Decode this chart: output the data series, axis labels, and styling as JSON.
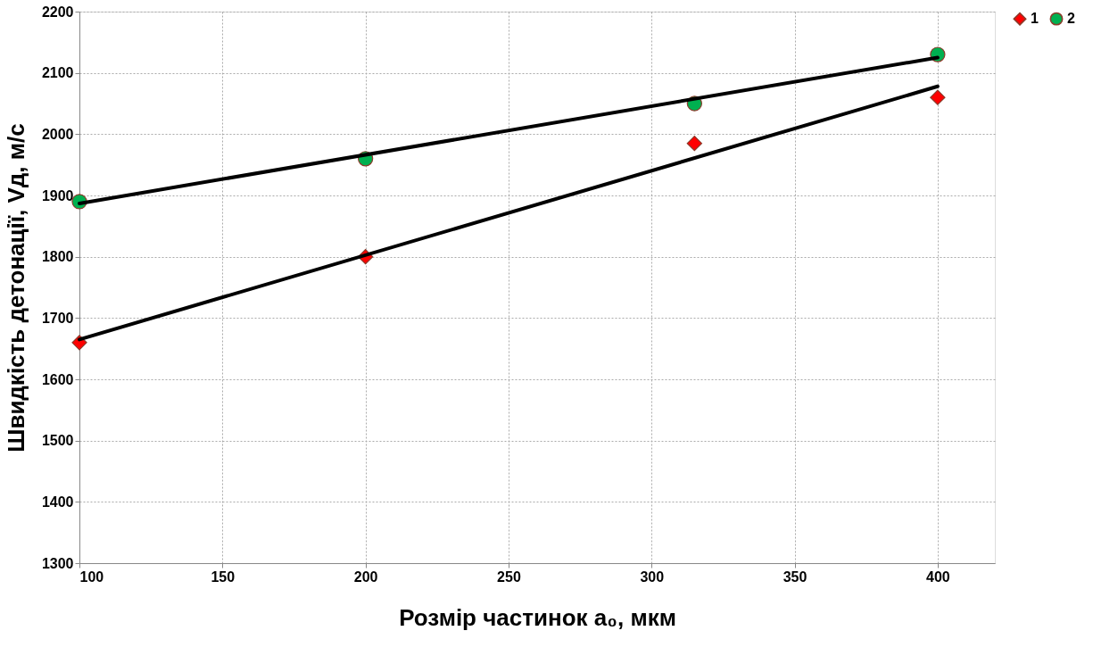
{
  "chart_data": {
    "type": "scatter",
    "xlabel": "Розмір частинок a₀, мкм",
    "ylabel": "Швидкість детонації,  Vд, м/с",
    "series": [
      {
        "name": "1",
        "color": "#ff0000",
        "marker": "diamond",
        "x": [
          100,
          200,
          315,
          400
        ],
        "values": [
          1660,
          1800,
          1985,
          2060
        ]
      },
      {
        "name": "2",
        "color": "#00b050",
        "marker": "circle",
        "x": [
          100,
          200,
          315,
          400
        ],
        "values": [
          1890,
          1960,
          2050,
          2130
        ]
      },
      {
        "type": "line",
        "color": "#000000",
        "x": [
          100,
          400
        ],
        "values": [
          1665,
          2078
        ]
      },
      {
        "type": "line",
        "color": "#000000",
        "x": [
          100,
          400
        ],
        "values": [
          1887,
          2125
        ]
      }
    ],
    "xlim": [
      100,
      420
    ],
    "xticks": [
      100,
      150,
      200,
      250,
      300,
      350,
      400
    ],
    "ylim": [
      1300,
      2200
    ],
    "yticks": [
      1300,
      1400,
      1500,
      1600,
      1700,
      1800,
      1900,
      2000,
      2100,
      2200
    ],
    "grid": true,
    "legend": "right"
  }
}
